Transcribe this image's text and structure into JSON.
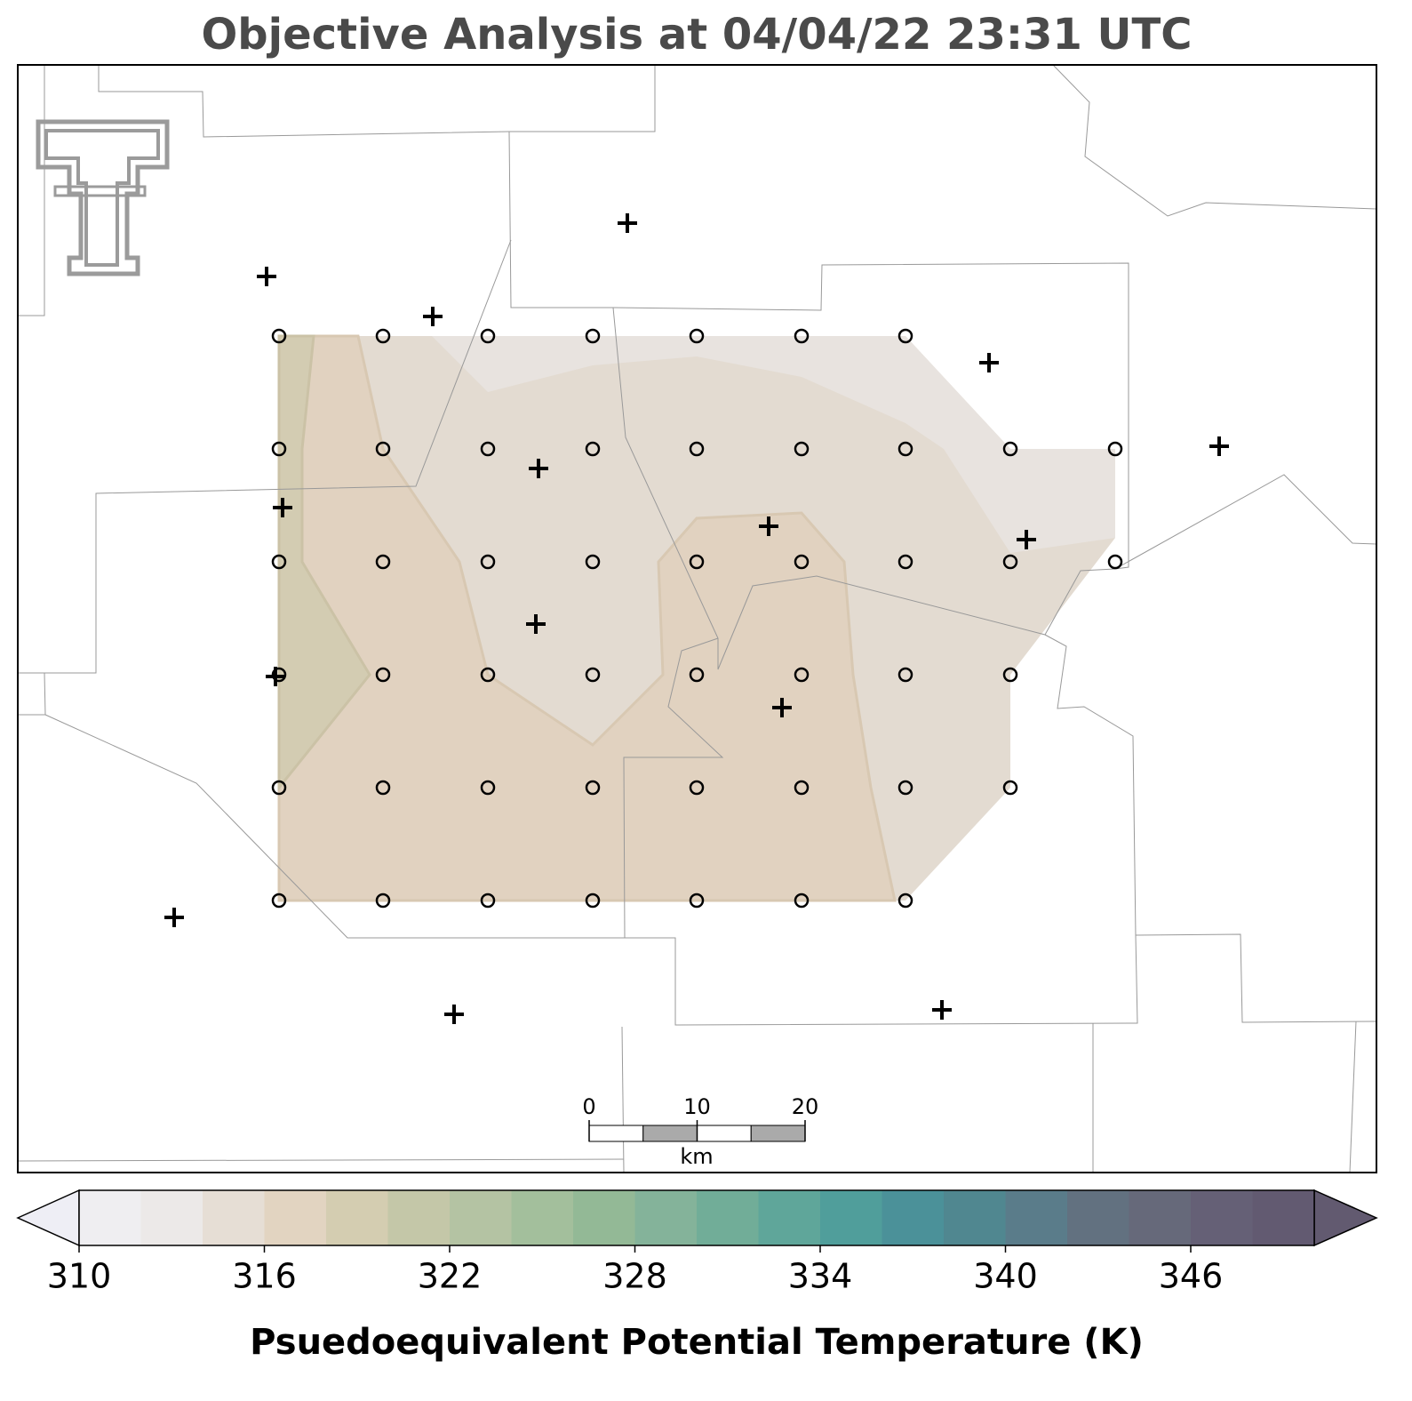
{
  "title": "Objective Analysis at 04/04/22 23:31 UTC",
  "colorbar": {
    "label": "Psuedoequivalent Potential Temperature (K)",
    "lim": [
      310,
      350
    ],
    "ticks": [
      310,
      316,
      322,
      328,
      334,
      340,
      346
    ],
    "levels": [
      310,
      312,
      314,
      316,
      318,
      320,
      322,
      324,
      326,
      328,
      330,
      332,
      334,
      336,
      338,
      340,
      342,
      344,
      346,
      348,
      350
    ],
    "colors": [
      "#efeef1",
      "#ece9e8",
      "#e6ded5",
      "#e2d4c1",
      "#d4cdb1",
      "#c4c7a8",
      "#b4c3a3",
      "#a3bf9c",
      "#93b996",
      "#84b39a",
      "#71ad98",
      "#5fa69a",
      "#509e9b",
      "#4b9199",
      "#508790",
      "#5a7c8a",
      "#627180",
      "#66697a",
      "#656076",
      "#625a71"
    ],
    "under_color": "#eeeef5",
    "over_color": "#625a70"
  },
  "scalebar": {
    "ticks": [
      0,
      10,
      20
    ],
    "unit": "km"
  }
}
